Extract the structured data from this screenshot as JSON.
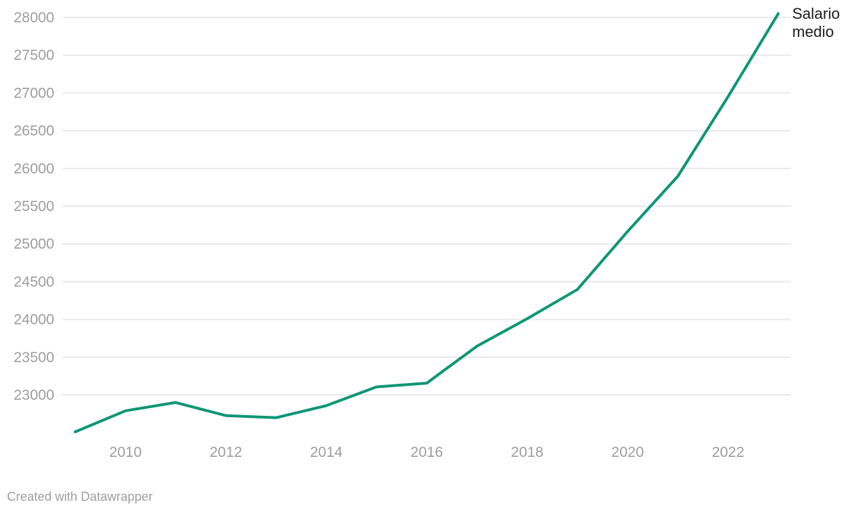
{
  "chart_data": {
    "type": "line",
    "title": "",
    "xlabel": "",
    "ylabel": "",
    "series": [
      {
        "name": "Salario medio",
        "x": [
          2009,
          2010,
          2011,
          2012,
          2013,
          2014,
          2015,
          2016,
          2017,
          2018,
          2019,
          2020,
          2021,
          2022,
          2023
        ],
        "values": [
          22511,
          22790,
          22899,
          22726,
          22698,
          22858,
          23106,
          23156,
          23646,
          24009,
          24396,
          25165,
          25897,
          26949,
          28050
        ]
      }
    ],
    "x_ticks": [
      2010,
      2012,
      2014,
      2016,
      2018,
      2020,
      2022
    ],
    "y_ticks": [
      23000,
      23500,
      24000,
      24500,
      25000,
      25500,
      26000,
      26500,
      27000,
      27500,
      28000
    ],
    "xlim": [
      2009,
      2023
    ],
    "ylim": [
      22420,
      28100
    ],
    "grid": "horizontal-only",
    "legend_position": "line-end-label",
    "colors": {
      "line": "#0d9676",
      "grid": "#e9e9e9",
      "tick_label": "#9d9d9d",
      "annotation": "#1d1d1d",
      "footer": "#9e9e9e"
    }
  },
  "annotation": {
    "series_label": "Salario medio"
  },
  "footer": {
    "credit": "Created with Datawrapper"
  }
}
